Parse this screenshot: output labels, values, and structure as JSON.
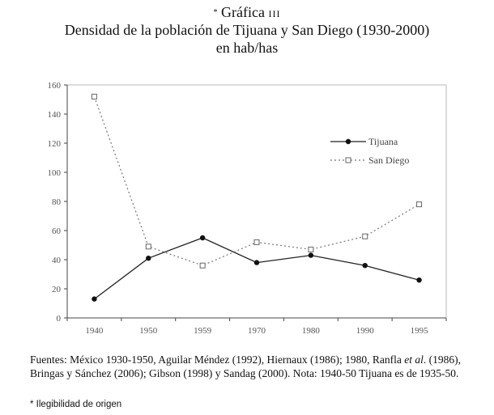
{
  "header": {
    "asterisk": "*",
    "label": "Gráfica",
    "number": "III",
    "title": "Densidad de la población de Tijuana y San Diego (1930-2000)",
    "subtitle": "en hab/has"
  },
  "chart_data": {
    "type": "line",
    "title": "Densidad de la población de Tijuana y San Diego (1930-2000)",
    "subtitle": "en hab/has",
    "categories": [
      "1940",
      "1950",
      "1959",
      "1970",
      "1980",
      "1990",
      "1995"
    ],
    "ylim": [
      0,
      160
    ],
    "yticks": [
      "0",
      "20",
      "40",
      "60",
      "80",
      "100",
      "120",
      "140",
      "160"
    ],
    "grid": false,
    "legend": "top-right",
    "series": [
      {
        "name": "Tijuana",
        "values": [
          13,
          41,
          55,
          38,
          43,
          36,
          26
        ],
        "style": "solid",
        "marker": "filled-circle",
        "color": "#222222"
      },
      {
        "name": "San Diego",
        "values": [
          152,
          49,
          36,
          52,
          47,
          56,
          78
        ],
        "style": "dotted",
        "marker": "open-square",
        "color": "#777777"
      }
    ]
  },
  "footer": {
    "source_part1": "Fuentes: México 1930-1950, Aguilar Méndez (1992), Hiernaux (1986); 1980, Ranfla ",
    "source_italic": "et al",
    "source_part2": ". (1986), Bringas y Sánchez (2006); Gibson (1998) y Sandag (2000). Nota: 1940-50 Tijuana es de 1935-50.",
    "note": "* Ilegibilidad de origen"
  }
}
